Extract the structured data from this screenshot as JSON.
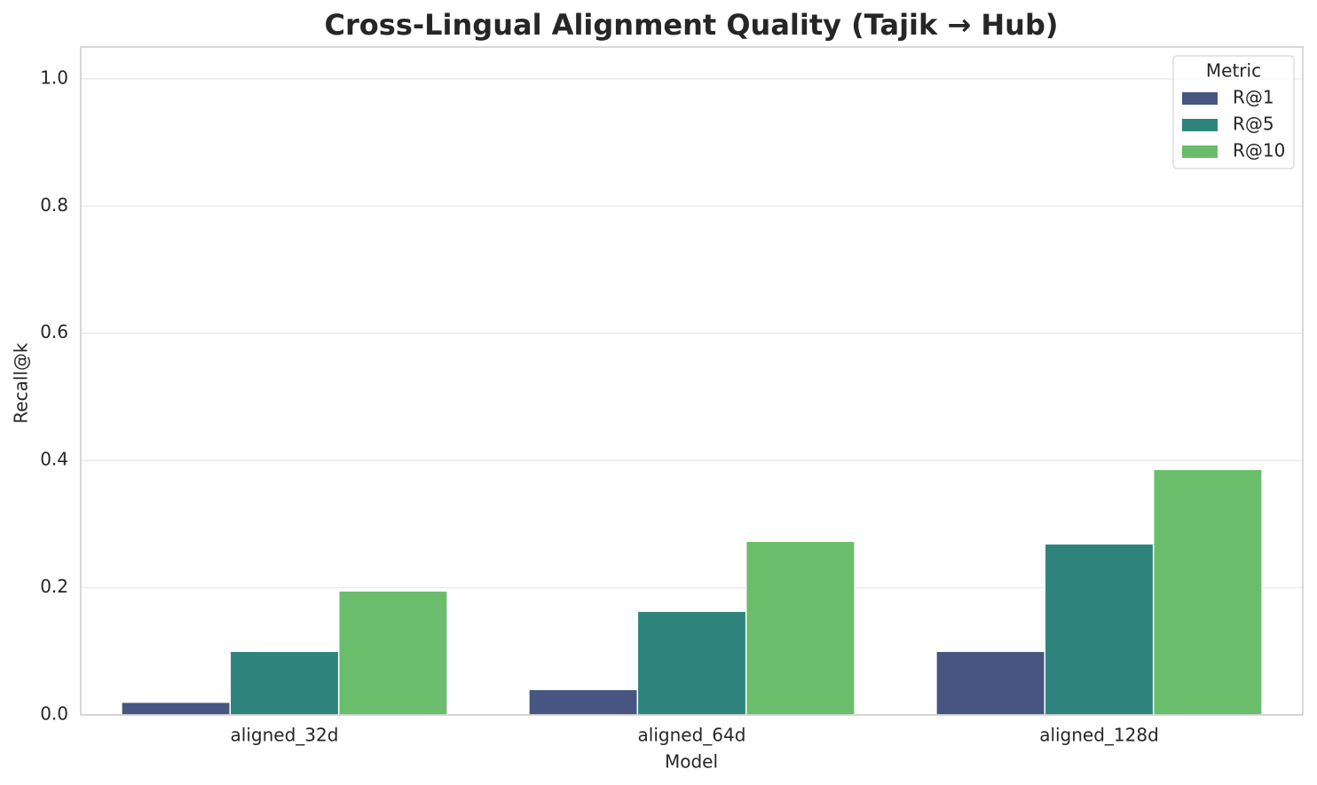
{
  "chart_data": {
    "type": "bar",
    "title": "Cross-Lingual Alignment Quality (Tajik → Hub)",
    "x_label": "Model",
    "y_label": "Recall@k",
    "categories": [
      "aligned_32d",
      "aligned_64d",
      "aligned_128d"
    ],
    "series": [
      {
        "name": "R@1",
        "color": "#465680",
        "values": [
          0.02,
          0.04,
          0.1
        ]
      },
      {
        "name": "R@5",
        "color": "#2e847d",
        "values": [
          0.1,
          0.163,
          0.269
        ]
      },
      {
        "name": "R@10",
        "color": "#6abd6a",
        "values": [
          0.195,
          0.273,
          0.386
        ]
      }
    ],
    "legend_title": "Metric",
    "legend_position": "upper right",
    "ylim": [
      0,
      1.05
    ],
    "yticks": [
      {
        "value": 0,
        "label": "0.0"
      },
      0.2,
      0.4,
      0.6,
      0.8,
      {
        "value": 1,
        "label": "1.0"
      }
    ],
    "grid": true
  }
}
